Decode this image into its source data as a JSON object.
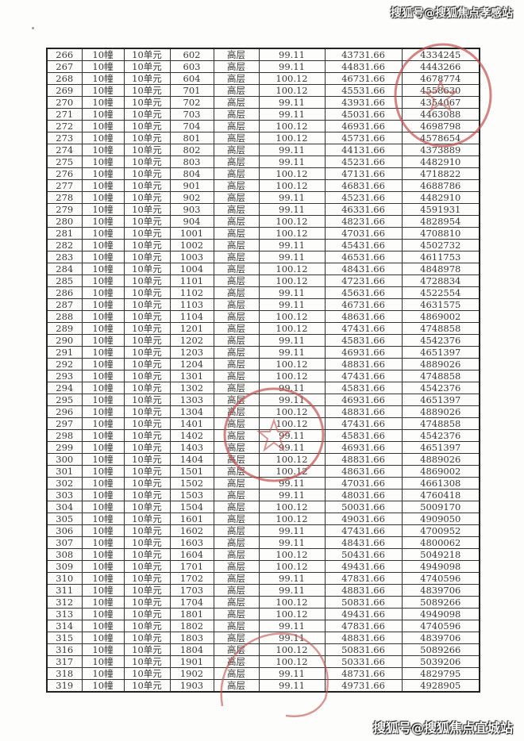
{
  "watermark_top": "搜狐号@搜狐焦点孝感站",
  "watermark_bottom": "搜狐号@搜狐焦点宜城站",
  "stamp_color": "#c0504d",
  "table": {
    "rows": [
      [
        "266",
        "10幢",
        "10单元",
        "602",
        "高层",
        "99.11",
        "43731.66",
        "4334245"
      ],
      [
        "267",
        "10幢",
        "10单元",
        "603",
        "高层",
        "99.11",
        "44831.66",
        "4443266"
      ],
      [
        "268",
        "10幢",
        "10单元",
        "604",
        "高层",
        "100.12",
        "46731.66",
        "4678774"
      ],
      [
        "269",
        "10幢",
        "10单元",
        "701",
        "高层",
        "100.12",
        "45531.66",
        "4558630"
      ],
      [
        "270",
        "10幢",
        "10单元",
        "702",
        "高层",
        "99.11",
        "43931.66",
        "4354067"
      ],
      [
        "271",
        "10幢",
        "10单元",
        "703",
        "高层",
        "99.11",
        "45031.66",
        "4463088"
      ],
      [
        "272",
        "10幢",
        "10单元",
        "704",
        "高层",
        "100.12",
        "46931.66",
        "4698798"
      ],
      [
        "273",
        "10幢",
        "10单元",
        "801",
        "高层",
        "100.12",
        "45731.66",
        "4578654"
      ],
      [
        "274",
        "10幢",
        "10单元",
        "802",
        "高层",
        "99.11",
        "44131.66",
        "4373889"
      ],
      [
        "275",
        "10幢",
        "10单元",
        "803",
        "高层",
        "99.11",
        "45231.66",
        "4482910"
      ],
      [
        "276",
        "10幢",
        "10单元",
        "804",
        "高层",
        "100.12",
        "47131.66",
        "4718822"
      ],
      [
        "277",
        "10幢",
        "10单元",
        "901",
        "高层",
        "100.12",
        "46831.66",
        "4688786"
      ],
      [
        "278",
        "10幢",
        "10单元",
        "902",
        "高层",
        "99.11",
        "45231.66",
        "4482910"
      ],
      [
        "279",
        "10幢",
        "10单元",
        "903",
        "高层",
        "99.11",
        "46331.66",
        "4591931"
      ],
      [
        "280",
        "10幢",
        "10单元",
        "904",
        "高层",
        "100.12",
        "48231.66",
        "4828954"
      ],
      [
        "281",
        "10幢",
        "10单元",
        "1001",
        "高层",
        "100.12",
        "47031.66",
        "4708810"
      ],
      [
        "282",
        "10幢",
        "10单元",
        "1002",
        "高层",
        "99.11",
        "45431.66",
        "4502732"
      ],
      [
        "283",
        "10幢",
        "10单元",
        "1003",
        "高层",
        "99.11",
        "46531.66",
        "4611753"
      ],
      [
        "284",
        "10幢",
        "10单元",
        "1004",
        "高层",
        "100.12",
        "48431.66",
        "4848978"
      ],
      [
        "285",
        "10幢",
        "10单元",
        "1101",
        "高层",
        "100.12",
        "47231.66",
        "4728834"
      ],
      [
        "286",
        "10幢",
        "10单元",
        "1102",
        "高层",
        "99.11",
        "45631.66",
        "4522554"
      ],
      [
        "287",
        "10幢",
        "10单元",
        "1103",
        "高层",
        "99.11",
        "46731.66",
        "4631575"
      ],
      [
        "288",
        "10幢",
        "10单元",
        "1104",
        "高层",
        "100.12",
        "48631.66",
        "4869002"
      ],
      [
        "289",
        "10幢",
        "10单元",
        "1201",
        "高层",
        "100.12",
        "47431.66",
        "4748858"
      ],
      [
        "290",
        "10幢",
        "10单元",
        "1202",
        "高层",
        "99.11",
        "45831.66",
        "4542376"
      ],
      [
        "291",
        "10幢",
        "10单元",
        "1203",
        "高层",
        "99.11",
        "46931.66",
        "4651397"
      ],
      [
        "292",
        "10幢",
        "10单元",
        "1204",
        "高层",
        "100.12",
        "48831.66",
        "4889026"
      ],
      [
        "293",
        "10幢",
        "10单元",
        "1301",
        "高层",
        "100.12",
        "47431.66",
        "4748858"
      ],
      [
        "294",
        "10幢",
        "10单元",
        "1302",
        "高层",
        "99.11",
        "45831.66",
        "4542376"
      ],
      [
        "295",
        "10幢",
        "10单元",
        "1303",
        "高层",
        "99.11",
        "46931.66",
        "4651397"
      ],
      [
        "296",
        "10幢",
        "10单元",
        "1304",
        "高层",
        "100.12",
        "48831.66",
        "4889026"
      ],
      [
        "297",
        "10幢",
        "10单元",
        "1401",
        "高层",
        "100.12",
        "47431.66",
        "4748858"
      ],
      [
        "298",
        "10幢",
        "10单元",
        "1402",
        "高层",
        "99.11",
        "45831.66",
        "4542376"
      ],
      [
        "299",
        "10幢",
        "10单元",
        "1403",
        "高层",
        "99.11",
        "46931.66",
        "4651397"
      ],
      [
        "300",
        "10幢",
        "10单元",
        "1404",
        "高层",
        "100.12",
        "48831.66",
        "4889026"
      ],
      [
        "301",
        "10幢",
        "10单元",
        "1501",
        "高层",
        "100.12",
        "48631.66",
        "4869002"
      ],
      [
        "302",
        "10幢",
        "10单元",
        "1502",
        "高层",
        "99.11",
        "47031.66",
        "4661308"
      ],
      [
        "303",
        "10幢",
        "10单元",
        "1503",
        "高层",
        "99.11",
        "48031.66",
        "4760418"
      ],
      [
        "304",
        "10幢",
        "10单元",
        "1504",
        "高层",
        "100.12",
        "50031.66",
        "5009170"
      ],
      [
        "305",
        "10幢",
        "10单元",
        "1601",
        "高层",
        "100.12",
        "49031.66",
        "4909050"
      ],
      [
        "306",
        "10幢",
        "10单元",
        "1602",
        "高层",
        "99.11",
        "47431.66",
        "4700952"
      ],
      [
        "307",
        "10幢",
        "10单元",
        "1603",
        "高层",
        "99.11",
        "48431.66",
        "4800062"
      ],
      [
        "308",
        "10幢",
        "10单元",
        "1604",
        "高层",
        "100.12",
        "50431.66",
        "5049218"
      ],
      [
        "309",
        "10幢",
        "10单元",
        "1701",
        "高层",
        "100.12",
        "49431.66",
        "4949098"
      ],
      [
        "310",
        "10幢",
        "10单元",
        "1702",
        "高层",
        "99.11",
        "47831.66",
        "4740596"
      ],
      [
        "311",
        "10幢",
        "10单元",
        "1703",
        "高层",
        "99.11",
        "48831.66",
        "4839706"
      ],
      [
        "312",
        "10幢",
        "10单元",
        "1704",
        "高层",
        "100.12",
        "50831.66",
        "5089266"
      ],
      [
        "313",
        "10幢",
        "10单元",
        "1801",
        "高层",
        "100.12",
        "49431.66",
        "4949098"
      ],
      [
        "314",
        "10幢",
        "10单元",
        "1802",
        "高层",
        "99.11",
        "47831.66",
        "4740596"
      ],
      [
        "315",
        "10幢",
        "10单元",
        "1803",
        "高层",
        "99.11",
        "48831.66",
        "4839706"
      ],
      [
        "316",
        "10幢",
        "10单元",
        "1804",
        "高层",
        "100.12",
        "50831.66",
        "5089266"
      ],
      [
        "317",
        "10幢",
        "10单元",
        "1901",
        "高层",
        "100.12",
        "50331.66",
        "5039206"
      ],
      [
        "318",
        "10幢",
        "10单元",
        "1902",
        "高层",
        "99.11",
        "48731.66",
        "4829795"
      ],
      [
        "319",
        "10幢",
        "10单元",
        "1903",
        "高层",
        "99.11",
        "49731.66",
        "4928905"
      ]
    ]
  }
}
